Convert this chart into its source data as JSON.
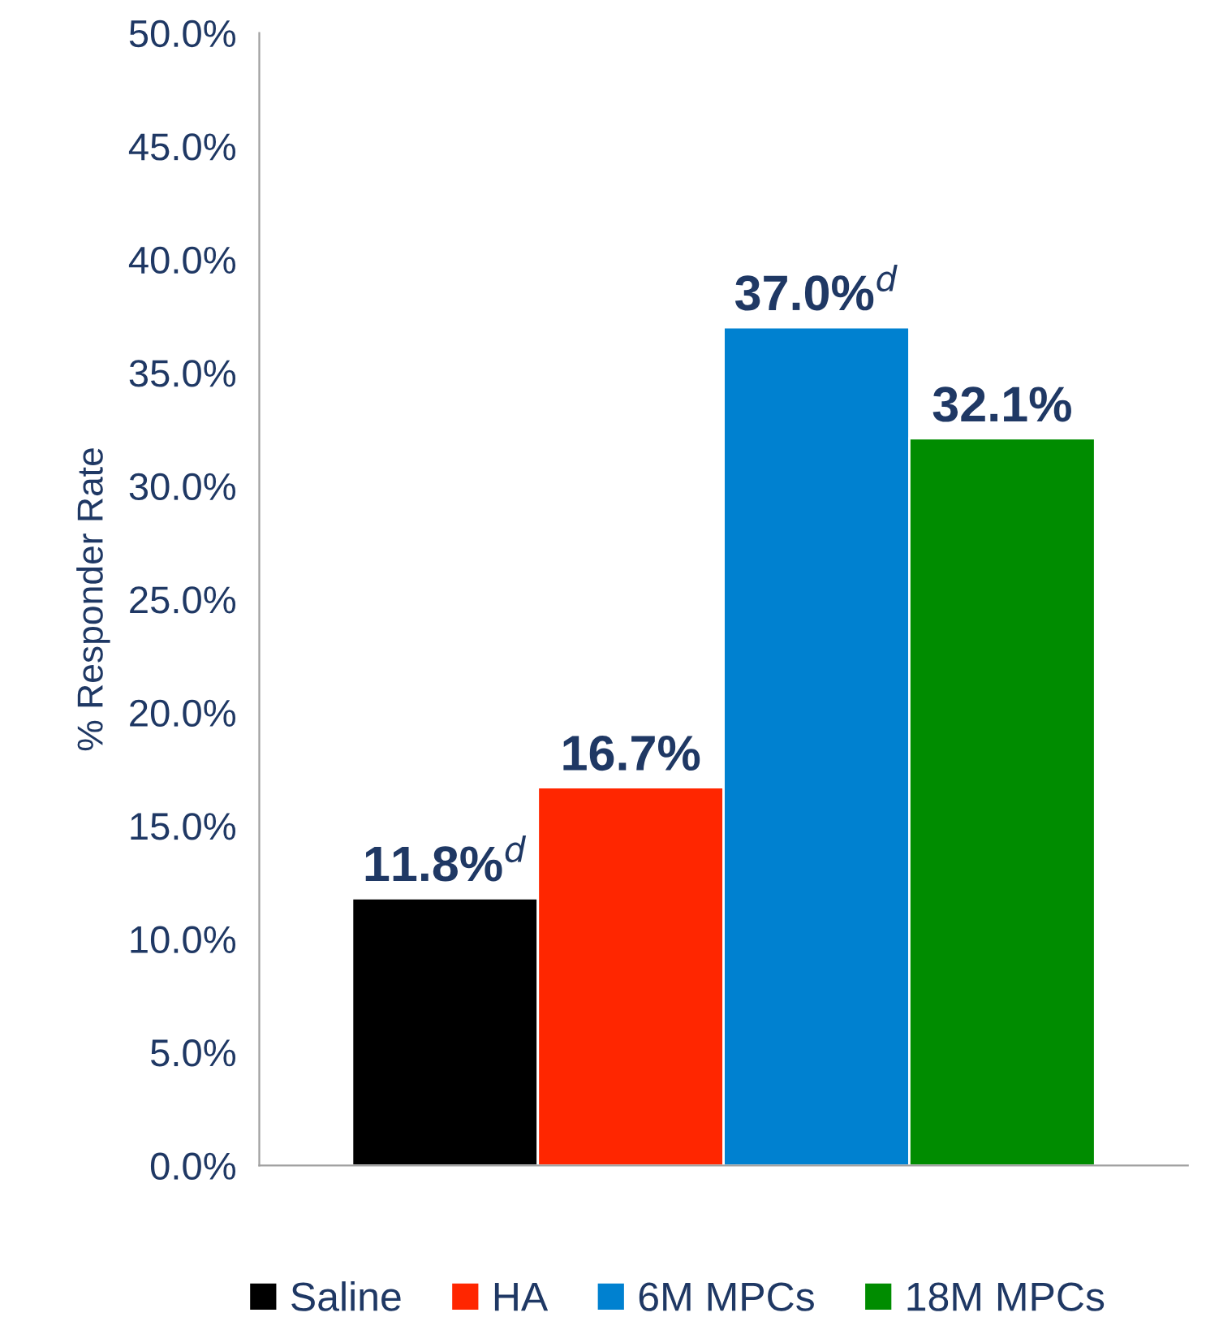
{
  "chart_data": {
    "type": "bar",
    "ylabel": "% Responder Rate",
    "categories": [
      null
    ],
    "series": [
      {
        "name": "Saline",
        "color": "#000000",
        "values": [
          11.8
        ],
        "value_labels": [
          "11.8%$^{d}$"
        ]
      },
      {
        "name": "HA",
        "color": "#ff2600",
        "values": [
          16.7
        ],
        "value_labels": [
          "16.7%"
        ]
      },
      {
        "name": "6M MPCs",
        "color": "#0081d0",
        "values": [
          37.0
        ],
        "value_labels": [
          "37.0%$^{d}$"
        ]
      },
      {
        "name": "18M MPCs",
        "color": "#008c00",
        "values": [
          32.1
        ],
        "value_labels": [
          "32.1%"
        ]
      }
    ],
    "ylim": [
      0,
      50
    ],
    "yticks": [
      {
        "value": 0,
        "label": "0.0%"
      },
      {
        "value": 5,
        "label": "5.0%"
      },
      {
        "value": 10,
        "label": "10.0%"
      },
      {
        "value": 15,
        "label": "15.0%"
      },
      {
        "value": 20,
        "label": "20.0%"
      },
      {
        "value": 25,
        "label": "25.0%"
      },
      {
        "value": 30,
        "label": "30.0%"
      },
      {
        "value": 35,
        "label": "35.0%"
      },
      {
        "value": 40,
        "label": "40.0%"
      },
      {
        "value": 45,
        "label": "45.0%"
      },
      {
        "value": 50,
        "label": "50.0%"
      }
    ],
    "grid": false,
    "legend": "bottom"
  }
}
